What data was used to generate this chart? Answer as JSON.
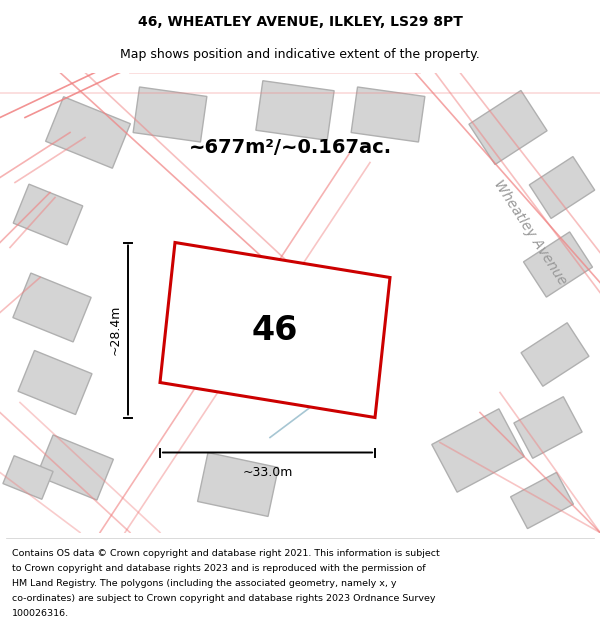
{
  "title_line1": "46, WHEATLEY AVENUE, ILKLEY, LS29 8PT",
  "title_line2": "Map shows position and indicative extent of the property.",
  "area_text": "~677m²/~0.167ac.",
  "property_number": "46",
  "dim_width": "~33.0m",
  "dim_height": "~28.4m",
  "footer_lines": [
    "Contains OS data © Crown copyright and database right 2021. This information is subject",
    "to Crown copyright and database rights 2023 and is reproduced with the permission of",
    "HM Land Registry. The polygons (including the associated geometry, namely x, y",
    "co-ordinates) are subject to Crown copyright and database rights 2023 Ordnance Survey",
    "100026316."
  ],
  "street_label": "Wheatley Avenue",
  "map_bg": "#efefef",
  "property_fill": "#ffffff",
  "property_edge": "#cc0000",
  "building_fill": "#d4d4d4",
  "building_edge": "#b0b0b0",
  "road_color": "#f08080",
  "road_color2": "#90b8c8"
}
